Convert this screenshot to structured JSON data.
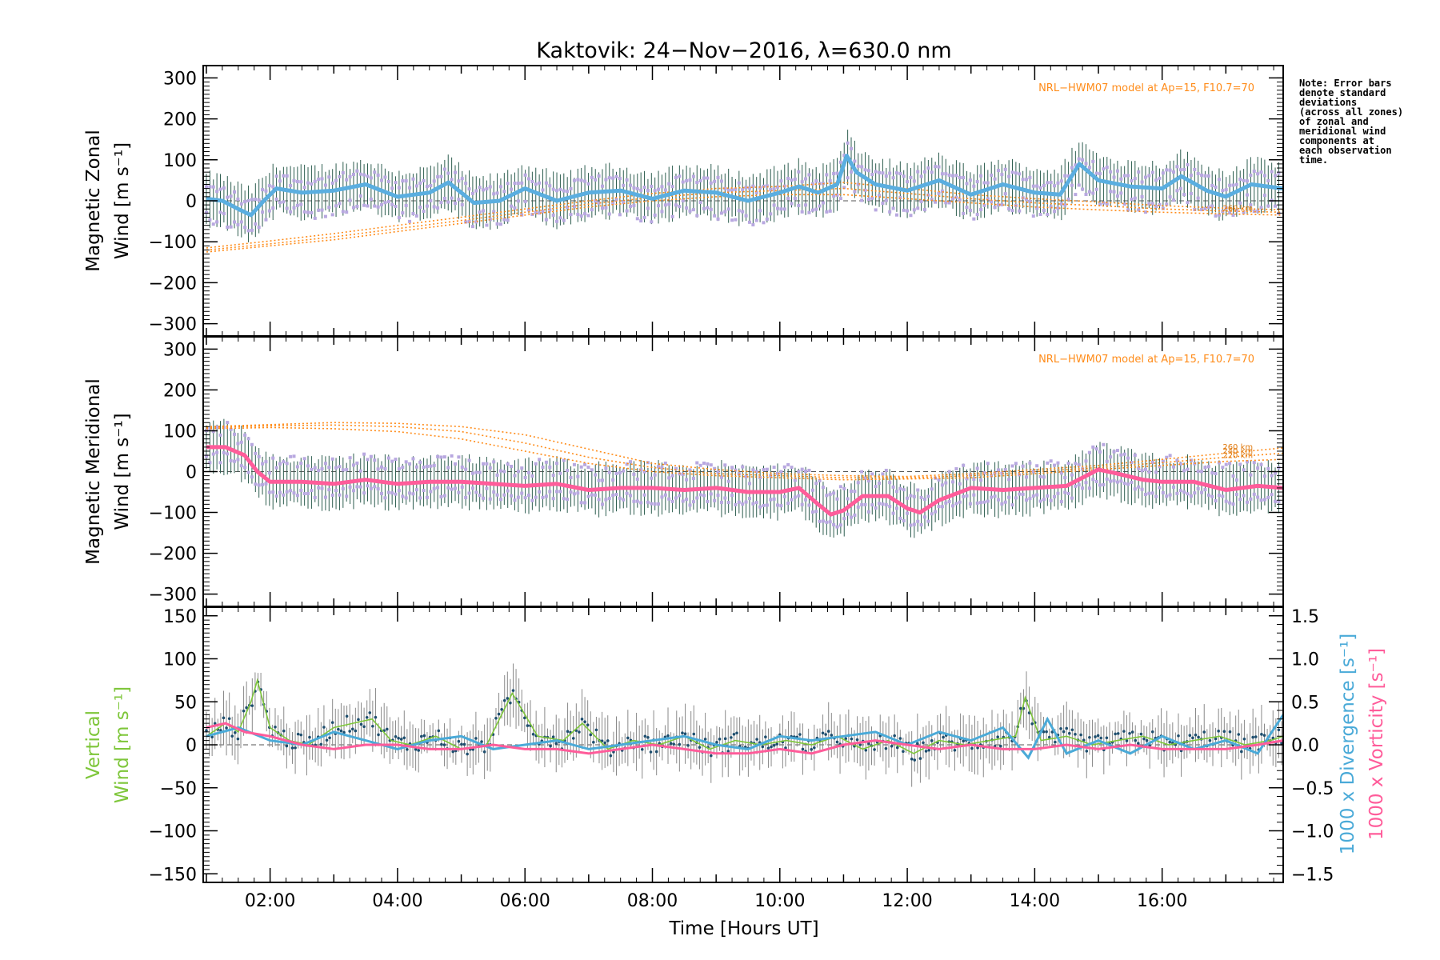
{
  "title": "Kaktovik: 24−Nov−2016, λ=630.0 nm",
  "note": [
    "Note: Error bars",
    "denote standard",
    "deviations",
    "(across all zones)",
    "of zonal and",
    "meridional wind",
    "components at",
    "each observation",
    "time."
  ],
  "colors": {
    "zonal_mean": "#5aaee0",
    "meridional_mean": "#ff5c9a",
    "vertical": "#7ec63a",
    "divergence": "#4aaad8",
    "vorticity": "#ff5c9a",
    "model": "#ff8c1a",
    "zone_points": "#b8a8e0",
    "errorbar": "#2e5e50",
    "vert_errorbar": "#8a8a8a"
  },
  "chart_data": [
    {
      "type": "line",
      "panel": "zonal",
      "ylabel_line1": "Magnetic Zonal",
      "ylabel_line2": "Wind [m s⁻¹]",
      "ylim": [
        -330,
        330
      ],
      "yticks": [
        -300,
        -200,
        -100,
        0,
        100,
        200,
        300
      ],
      "xlim": [
        0.95,
        17.9
      ],
      "model_label": "NRL−HWM07 model at Ap=15, F10.7=70",
      "alt_labels": [
        "260 km"
      ],
      "series": [
        {
          "role": "mean",
          "x": [
            1.0,
            1.25,
            1.5,
            1.7,
            1.9,
            2.1,
            2.5,
            3.0,
            3.5,
            4.0,
            4.5,
            4.8,
            5.2,
            5.6,
            6.0,
            6.5,
            7.0,
            7.5,
            8.0,
            8.5,
            9.0,
            9.5,
            10.0,
            10.3,
            10.6,
            10.9,
            11.05,
            11.2,
            11.5,
            12.0,
            12.5,
            13.0,
            13.5,
            14.0,
            14.4,
            14.7,
            15.0,
            15.5,
            16.0,
            16.3,
            16.7,
            17.0,
            17.4,
            17.9
          ],
          "y": [
            5,
            0,
            -20,
            -35,
            0,
            30,
            20,
            25,
            40,
            10,
            20,
            45,
            -5,
            0,
            30,
            0,
            20,
            25,
            5,
            25,
            20,
            0,
            20,
            35,
            20,
            40,
            110,
            70,
            40,
            25,
            50,
            15,
            40,
            20,
            15,
            90,
            50,
            35,
            30,
            60,
            25,
            10,
            40,
            30
          ]
        },
        {
          "role": "model",
          "alt": "260 km",
          "x": [
            1.0,
            2.0,
            3.0,
            4.0,
            5.0,
            6.0,
            7.0,
            8.0,
            9.0,
            10.0,
            11.0,
            12.0,
            13.0,
            14.0,
            15.0,
            16.0,
            17.0,
            17.9
          ],
          "y": [
            -125,
            -110,
            -95,
            -75,
            -55,
            -35,
            -15,
            0,
            10,
            15,
            15,
            5,
            -5,
            -15,
            -22,
            -28,
            -32,
            -35
          ]
        },
        {
          "role": "model",
          "alt": "240 km",
          "x": [
            1.0,
            2.0,
            3.0,
            4.0,
            5.0,
            6.0,
            7.0,
            8.0,
            9.0,
            10.0,
            11.0,
            12.0,
            13.0,
            14.0,
            15.0,
            16.0,
            17.0,
            17.9
          ],
          "y": [
            -120,
            -105,
            -88,
            -68,
            -48,
            -28,
            -8,
            8,
            20,
            25,
            30,
            18,
            5,
            -5,
            -12,
            -20,
            -25,
            -28
          ]
        },
        {
          "role": "model",
          "alt": "220 km",
          "x": [
            1.0,
            2.0,
            3.0,
            4.0,
            5.0,
            6.0,
            7.0,
            8.0,
            9.0,
            10.0,
            11.0,
            12.0,
            13.0,
            14.0,
            15.0,
            16.0,
            17.0,
            17.9
          ],
          "y": [
            -115,
            -98,
            -80,
            -60,
            -40,
            -20,
            0,
            18,
            30,
            35,
            45,
            30,
            15,
            5,
            -3,
            -12,
            -18,
            -22
          ]
        }
      ]
    },
    {
      "type": "line",
      "panel": "meridional",
      "ylabel_line1": "Magnetic Meridional",
      "ylabel_line2": "Wind [m s⁻¹]",
      "ylim": [
        -330,
        330
      ],
      "yticks": [
        -300,
        -200,
        -100,
        0,
        100,
        200,
        300
      ],
      "xlim": [
        0.95,
        17.9
      ],
      "model_label": "NRL−HWM07 model at Ap=15, F10.7=70",
      "alt_labels": [
        "260 km",
        "240 km",
        "220 km"
      ],
      "series": [
        {
          "role": "mean",
          "x": [
            1.0,
            1.3,
            1.6,
            1.8,
            2.0,
            2.5,
            3.0,
            3.5,
            4.0,
            4.5,
            5.0,
            5.5,
            6.0,
            6.5,
            7.0,
            7.5,
            8.0,
            8.5,
            9.0,
            9.5,
            10.0,
            10.3,
            10.6,
            10.8,
            11.0,
            11.3,
            11.7,
            12.0,
            12.2,
            12.5,
            13.0,
            13.5,
            14.0,
            14.5,
            15.0,
            15.3,
            15.7,
            16.0,
            16.5,
            17.0,
            17.5,
            17.9
          ],
          "y": [
            60,
            60,
            40,
            0,
            -25,
            -25,
            -30,
            -20,
            -30,
            -25,
            -25,
            -30,
            -35,
            -30,
            -45,
            -40,
            -40,
            -45,
            -40,
            -50,
            -50,
            -40,
            -80,
            -105,
            -95,
            -60,
            -60,
            -90,
            -100,
            -70,
            -40,
            -45,
            -40,
            -35,
            5,
            -5,
            -20,
            -25,
            -25,
            -45,
            -35,
            -40
          ]
        },
        {
          "role": "model",
          "alt": "260 km",
          "x": [
            1.0,
            2.0,
            3.0,
            4.0,
            5.0,
            6.0,
            7.0,
            8.0,
            9.0,
            10.0,
            11.0,
            12.0,
            13.0,
            14.0,
            15.0,
            16.0,
            17.0,
            17.9
          ],
          "y": [
            110,
            115,
            120,
            118,
            110,
            90,
            55,
            20,
            5,
            -5,
            -10,
            -12,
            -5,
            5,
            15,
            30,
            45,
            58
          ]
        },
        {
          "role": "model",
          "alt": "240 km",
          "x": [
            1.0,
            2.0,
            3.0,
            4.0,
            5.0,
            6.0,
            7.0,
            8.0,
            9.0,
            10.0,
            11.0,
            12.0,
            13.0,
            14.0,
            15.0,
            16.0,
            17.0,
            17.9
          ],
          "y": [
            108,
            112,
            114,
            110,
            98,
            70,
            35,
            10,
            -5,
            -10,
            -15,
            -15,
            -10,
            0,
            10,
            22,
            35,
            45
          ]
        },
        {
          "role": "model",
          "alt": "220 km",
          "x": [
            1.0,
            2.0,
            3.0,
            4.0,
            5.0,
            6.0,
            7.0,
            8.0,
            9.0,
            10.0,
            11.0,
            12.0,
            13.0,
            14.0,
            15.0,
            16.0,
            17.0,
            17.9
          ],
          "y": [
            105,
            108,
            105,
            98,
            80,
            50,
            20,
            0,
            -10,
            -15,
            -20,
            -18,
            -15,
            -5,
            5,
            15,
            25,
            30
          ]
        }
      ]
    },
    {
      "type": "line",
      "panel": "vertical",
      "ylabel_line1": "Vertical",
      "ylabel_line2": "Wind [m s⁻¹]",
      "xlabel": "Time [Hours UT]",
      "ylim": [
        -160,
        160
      ],
      "yticks": [
        -150,
        -100,
        -50,
        0,
        50,
        100,
        150
      ],
      "y2lim": [
        -1.6,
        1.6
      ],
      "y2ticks": [
        -1.5,
        -1.0,
        -0.5,
        0.0,
        0.5,
        1.0,
        1.5
      ],
      "y2label_divergence": "1000 x Divergence [s⁻¹]",
      "y2label_vorticity": "1000 x Vorticity [s⁻¹]",
      "xlim": [
        0.95,
        17.9
      ],
      "xticks": [
        2,
        4,
        6,
        8,
        10,
        12,
        14,
        16
      ],
      "xticklabels": [
        "02:00",
        "04:00",
        "06:00",
        "08:00",
        "10:00",
        "12:00",
        "14:00",
        "16:00"
      ],
      "series": [
        {
          "name": "Vertical Wind",
          "axis": "left",
          "x": [
            1.0,
            1.3,
            1.5,
            1.7,
            1.8,
            2.0,
            2.3,
            2.6,
            3.0,
            3.3,
            3.6,
            3.9,
            4.2,
            4.6,
            5.0,
            5.4,
            5.8,
            6.2,
            6.6,
            6.9,
            7.3,
            7.7,
            8.1,
            8.5,
            8.9,
            9.3,
            9.7,
            10.1,
            10.5,
            10.9,
            11.3,
            11.7,
            12.1,
            12.5,
            12.9,
            13.3,
            13.7,
            13.85,
            14.1,
            14.5,
            14.9,
            15.3,
            15.7,
            16.1,
            16.5,
            16.9,
            17.3,
            17.7,
            17.9
          ],
          "y": [
            10,
            25,
            15,
            50,
            75,
            20,
            5,
            0,
            20,
            25,
            30,
            5,
            0,
            10,
            -5,
            0,
            60,
            10,
            5,
            25,
            -5,
            5,
            0,
            10,
            -5,
            5,
            0,
            5,
            0,
            10,
            -5,
            5,
            -10,
            5,
            0,
            5,
            10,
            55,
            5,
            10,
            0,
            5,
            10,
            0,
            5,
            10,
            0,
            5,
            10
          ]
        },
        {
          "name": "1000 x Divergence",
          "axis": "right",
          "x": [
            1.0,
            1.5,
            2.0,
            2.5,
            3.0,
            3.5,
            4.0,
            4.5,
            5.0,
            5.5,
            6.0,
            6.5,
            7.0,
            7.5,
            8.0,
            8.5,
            9.0,
            9.5,
            10.0,
            10.5,
            11.0,
            11.5,
            12.0,
            12.5,
            13.0,
            13.5,
            13.9,
            14.2,
            14.5,
            15.0,
            15.5,
            16.0,
            16.5,
            17.0,
            17.5,
            17.9
          ],
          "y": [
            0.1,
            0.2,
            0.05,
            0.0,
            0.15,
            0.05,
            -0.05,
            0.05,
            0.1,
            -0.05,
            0.0,
            0.05,
            -0.05,
            0.0,
            0.05,
            0.1,
            0.0,
            -0.05,
            0.1,
            0.05,
            0.1,
            0.15,
            0.0,
            0.15,
            0.05,
            0.2,
            -0.15,
            0.3,
            -0.1,
            0.05,
            -0.1,
            0.1,
            -0.05,
            0.05,
            -0.1,
            0.35
          ]
        },
        {
          "name": "1000 x Vorticity",
          "axis": "right",
          "x": [
            1.0,
            1.3,
            1.6,
            2.0,
            2.5,
            3.0,
            3.5,
            4.0,
            4.5,
            5.0,
            5.5,
            6.0,
            6.5,
            7.0,
            7.5,
            8.0,
            8.5,
            9.0,
            9.5,
            10.0,
            10.5,
            11.0,
            11.5,
            12.0,
            12.5,
            13.0,
            13.5,
            14.0,
            14.5,
            15.0,
            15.5,
            16.0,
            16.5,
            17.0,
            17.5,
            17.9
          ],
          "y": [
            0.2,
            0.25,
            0.15,
            0.1,
            0.0,
            -0.05,
            0.0,
            0.0,
            -0.05,
            -0.05,
            0.0,
            -0.05,
            -0.05,
            -0.1,
            -0.05,
            0.0,
            -0.05,
            -0.1,
            -0.1,
            -0.05,
            -0.1,
            0.0,
            0.05,
            0.0,
            -0.05,
            0.0,
            -0.05,
            -0.05,
            0.0,
            -0.05,
            0.0,
            -0.05,
            -0.05,
            -0.05,
            0.0,
            0.05
          ]
        }
      ]
    }
  ]
}
